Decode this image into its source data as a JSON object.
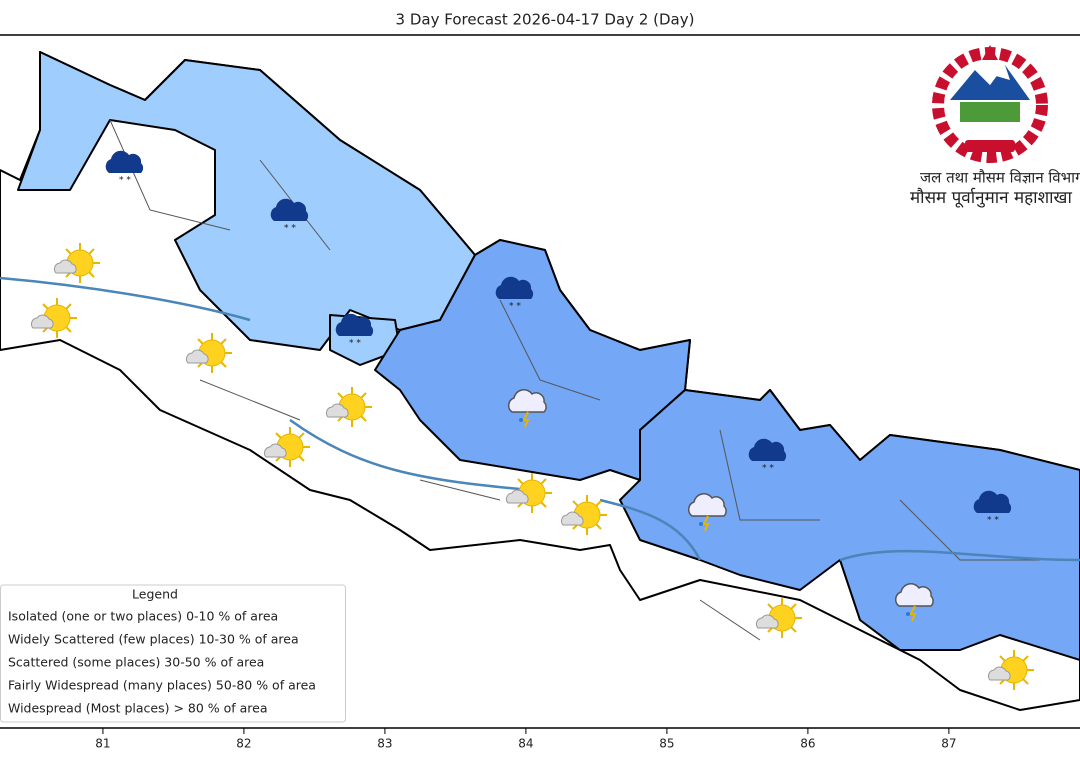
{
  "title": "3 Day Forecast 2026-04-17 Day 2 (Day)",
  "emblem": {
    "department": "जल तथा मौसम विज्ञान विभाग",
    "division": "मौसम पूर्वानुमान महाशाखा"
  },
  "legend": {
    "title": "Legend",
    "items": [
      "Isolated (one or two places)  0-10 % of area",
      "Widely Scattered (few places)  10-30 % of area",
      "Scattered (some places)  30-50 % of area",
      "Fairly Widespread (many places)  50-80 % of area",
      "Widespread (Most places) > 80 % of area"
    ]
  },
  "x_axis": {
    "lim": [
      80.27,
      87.93
    ],
    "ticks": [
      81,
      82,
      83,
      84,
      85,
      86,
      87
    ]
  }
}
